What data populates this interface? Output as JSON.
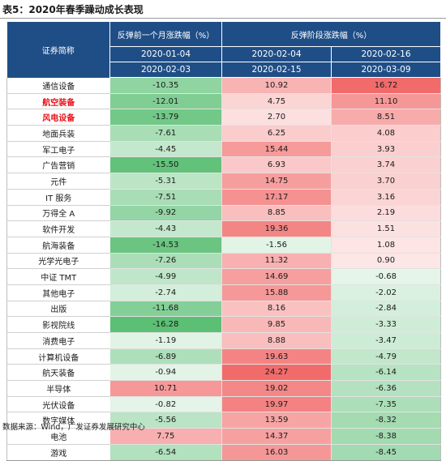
{
  "caption": "表5：2020年春季躁动成长表现",
  "header": {
    "name_col": "证券简称",
    "group1": "反弹前一个月涨跌幅（%）",
    "group2": "反弹阶段涨跌幅（%）",
    "periods": [
      {
        "start": "2020-01-04",
        "end": "2020-02-03"
      },
      {
        "start": "2020-02-04",
        "end": "2020-02-15"
      },
      {
        "start": "2020-02-16",
        "end": "2020-03-09"
      }
    ]
  },
  "colors": {
    "header_bg": "#1f4e86",
    "positive": "#f26b6b",
    "negative": "#5bbf74",
    "highlight_text": "#e8111b"
  },
  "rows": [
    {
      "name": "通信设备",
      "highlight": false,
      "values": [
        "-10.35",
        "10.92",
        "16.72"
      ]
    },
    {
      "name": "航空装备",
      "highlight": true,
      "values": [
        "-12.01",
        "4.75",
        "11.10"
      ]
    },
    {
      "name": "风电设备",
      "highlight": true,
      "values": [
        "-13.79",
        "2.70",
        "8.51"
      ]
    },
    {
      "name": "地面兵装",
      "highlight": false,
      "values": [
        "-7.61",
        "6.25",
        "4.08"
      ]
    },
    {
      "name": "军工电子",
      "highlight": false,
      "values": [
        "-4.45",
        "15.44",
        "3.93"
      ]
    },
    {
      "name": "广告营销",
      "highlight": false,
      "values": [
        "-15.50",
        "6.93",
        "3.74"
      ]
    },
    {
      "name": "元件",
      "highlight": false,
      "values": [
        "-5.31",
        "14.75",
        "3.70"
      ]
    },
    {
      "name": "IT 服务",
      "highlight": false,
      "values": [
        "-7.51",
        "17.17",
        "3.16"
      ]
    },
    {
      "name": "万得全 A",
      "highlight": false,
      "values": [
        "-9.92",
        "8.85",
        "2.19"
      ]
    },
    {
      "name": "软件开发",
      "highlight": false,
      "values": [
        "-4.43",
        "19.36",
        "1.51"
      ]
    },
    {
      "name": "航海装备",
      "highlight": false,
      "values": [
        "-14.53",
        "-1.56",
        "1.08"
      ]
    },
    {
      "name": "光学光电子",
      "highlight": false,
      "values": [
        "-7.26",
        "11.32",
        "0.90"
      ]
    },
    {
      "name": "中证 TMT",
      "highlight": false,
      "values": [
        "-4.99",
        "14.69",
        "-0.68"
      ]
    },
    {
      "name": "其他电子",
      "highlight": false,
      "values": [
        "-2.74",
        "15.88",
        "-2.02"
      ]
    },
    {
      "name": "出版",
      "highlight": false,
      "values": [
        "-11.68",
        "8.16",
        "-2.84"
      ]
    },
    {
      "name": "影视院线",
      "highlight": false,
      "values": [
        "-16.28",
        "9.85",
        "-3.33"
      ]
    },
    {
      "name": "消费电子",
      "highlight": false,
      "values": [
        "-1.19",
        "8.88",
        "-3.47"
      ]
    },
    {
      "name": "计算机设备",
      "highlight": false,
      "values": [
        "-6.89",
        "19.63",
        "-4.79"
      ]
    },
    {
      "name": "航天装备",
      "highlight": false,
      "values": [
        "-0.94",
        "24.27",
        "-6.14"
      ]
    },
    {
      "name": "半导体",
      "highlight": false,
      "values": [
        "10.71",
        "19.02",
        "-6.36"
      ]
    },
    {
      "name": "光伏设备",
      "highlight": false,
      "values": [
        "-0.82",
        "19.97",
        "-7.35"
      ]
    },
    {
      "name": "数字媒体",
      "highlight": false,
      "values": [
        "-5.56",
        "13.59",
        "-8.32"
      ]
    },
    {
      "name": "电池",
      "highlight": false,
      "values": [
        "7.75",
        "14.37",
        "-8.38"
      ]
    },
    {
      "name": "游戏",
      "highlight": false,
      "values": [
        "-6.54",
        "16.03",
        "-8.45"
      ]
    }
  ],
  "footer": "数据来源：Wind，广发证券发展研究中心"
}
